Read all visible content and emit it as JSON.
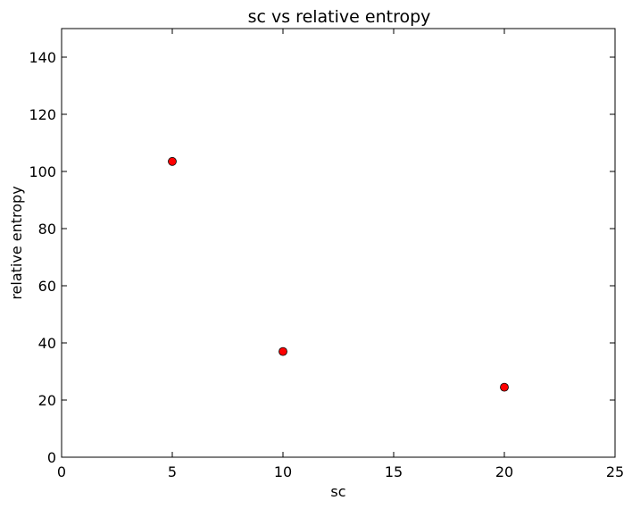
{
  "chart_data": {
    "type": "scatter",
    "title": "sc vs relative entropy",
    "xlabel": "sc",
    "ylabel": "relative entropy",
    "xlim": [
      0,
      25
    ],
    "ylim": [
      0,
      150
    ],
    "xticks": [
      "0",
      "5",
      "10",
      "15",
      "20",
      "25"
    ],
    "yticks": [
      "0",
      "20",
      "40",
      "60",
      "80",
      "100",
      "120",
      "140"
    ],
    "grid": false,
    "legend": "none",
    "series": [
      {
        "x": [
          5,
          10,
          20
        ],
        "y": [
          103.5,
          37,
          24.5
        ],
        "color": "#ff0000",
        "marker": "circle"
      }
    ]
  }
}
